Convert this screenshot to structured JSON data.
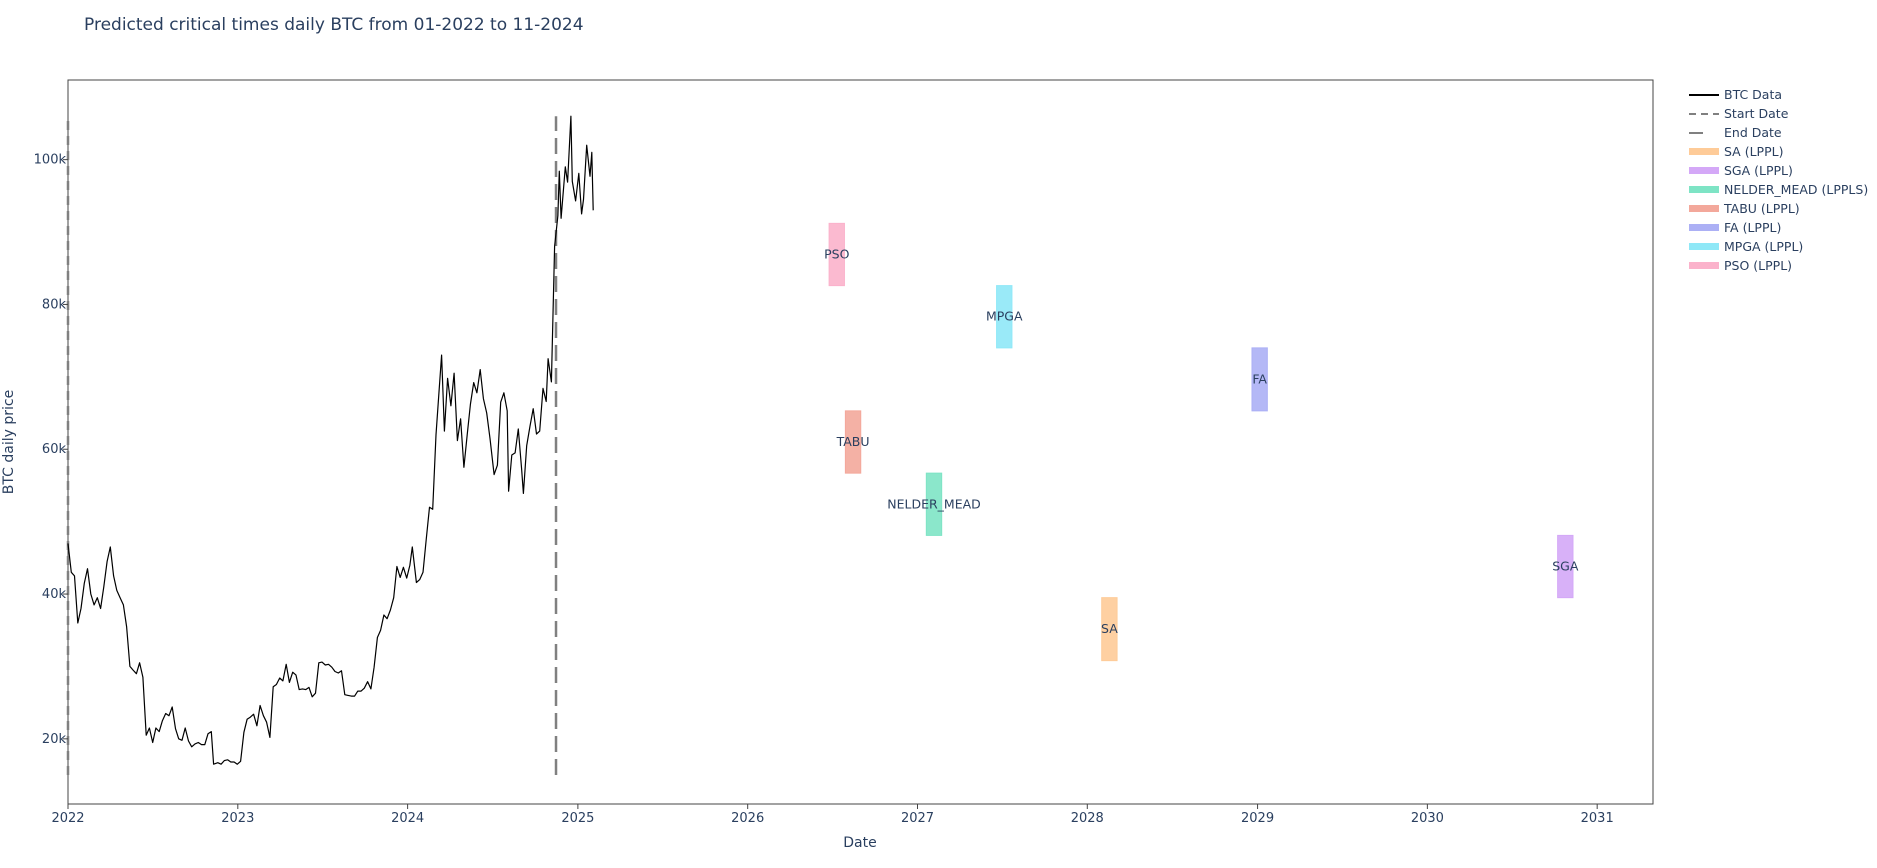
{
  "chart_data": {
    "type": "line",
    "title": "Predicted critical times daily BTC from 01-2022 to 11-2024",
    "xlabel": "Date",
    "ylabel": "BTC daily price",
    "xlim": [
      "2022-01-01",
      "2031-05-01"
    ],
    "ylim": [
      11000,
      111000
    ],
    "x_ticks": [
      "2022",
      "2023",
      "2024",
      "2025",
      "2026",
      "2027",
      "2028",
      "2029",
      "2030",
      "2031"
    ],
    "y_ticks": [
      {
        "value": 20000,
        "label": "20k"
      },
      {
        "value": 40000,
        "label": "40k"
      },
      {
        "value": 60000,
        "label": "60k"
      },
      {
        "value": 80000,
        "label": "80k"
      },
      {
        "value": 100000,
        "label": "100k"
      }
    ],
    "grid": false,
    "legend_position": "right",
    "btc_series": {
      "name": "BTC Data",
      "color": "#000000",
      "points": [
        [
          "2022-01-01",
          47000
        ],
        [
          "2022-01-08",
          43000
        ],
        [
          "2022-01-15",
          42500
        ],
        [
          "2022-01-22",
          36000
        ],
        [
          "2022-01-29",
          38000
        ],
        [
          "2022-02-05",
          41500
        ],
        [
          "2022-02-12",
          43500
        ],
        [
          "2022-02-19",
          40000
        ],
        [
          "2022-02-26",
          38500
        ],
        [
          "2022-03-05",
          39500
        ],
        [
          "2022-03-12",
          38000
        ],
        [
          "2022-03-19",
          41000
        ],
        [
          "2022-03-26",
          44500
        ],
        [
          "2022-04-02",
          46500
        ],
        [
          "2022-04-09",
          42500
        ],
        [
          "2022-04-16",
          40500
        ],
        [
          "2022-04-23",
          39500
        ],
        [
          "2022-04-30",
          38500
        ],
        [
          "2022-05-07",
          35500
        ],
        [
          "2022-05-14",
          30000
        ],
        [
          "2022-05-21",
          29500
        ],
        [
          "2022-05-28",
          29000
        ],
        [
          "2022-06-04",
          30500
        ],
        [
          "2022-06-11",
          28500
        ],
        [
          "2022-06-18",
          20500
        ],
        [
          "2022-06-25",
          21500
        ],
        [
          "2022-07-02",
          19500
        ],
        [
          "2022-07-09",
          21500
        ],
        [
          "2022-07-16",
          21000
        ],
        [
          "2022-07-23",
          22500
        ],
        [
          "2022-07-30",
          23500
        ],
        [
          "2022-08-06",
          23200
        ],
        [
          "2022-08-13",
          24400
        ],
        [
          "2022-08-20",
          21400
        ],
        [
          "2022-08-27",
          20000
        ],
        [
          "2022-09-03",
          19800
        ],
        [
          "2022-09-10",
          21500
        ],
        [
          "2022-09-17",
          19700
        ],
        [
          "2022-09-24",
          18900
        ],
        [
          "2022-10-01",
          19300
        ],
        [
          "2022-10-08",
          19500
        ],
        [
          "2022-10-15",
          19200
        ],
        [
          "2022-10-22",
          19200
        ],
        [
          "2022-10-29",
          20700
        ],
        [
          "2022-11-05",
          21000
        ],
        [
          "2022-11-10",
          16500
        ],
        [
          "2022-11-19",
          16700
        ],
        [
          "2022-11-26",
          16500
        ],
        [
          "2022-12-03",
          17000
        ],
        [
          "2022-12-10",
          17100
        ],
        [
          "2022-12-17",
          16800
        ],
        [
          "2022-12-24",
          16800
        ],
        [
          "2022-12-31",
          16500
        ],
        [
          "2023-01-07",
          16900
        ],
        [
          "2023-01-14",
          20900
        ],
        [
          "2023-01-21",
          22700
        ],
        [
          "2023-01-28",
          23000
        ],
        [
          "2023-02-04",
          23400
        ],
        [
          "2023-02-11",
          21800
        ],
        [
          "2023-02-18",
          24600
        ],
        [
          "2023-02-25",
          23200
        ],
        [
          "2023-03-04",
          22300
        ],
        [
          "2023-03-11",
          20200
        ],
        [
          "2023-03-18",
          27200
        ],
        [
          "2023-03-25",
          27500
        ],
        [
          "2023-04-01",
          28400
        ],
        [
          "2023-04-08",
          28000
        ],
        [
          "2023-04-15",
          30300
        ],
        [
          "2023-04-22",
          27800
        ],
        [
          "2023-04-29",
          29200
        ],
        [
          "2023-05-06",
          28800
        ],
        [
          "2023-05-13",
          26800
        ],
        [
          "2023-05-20",
          26900
        ],
        [
          "2023-05-27",
          26800
        ],
        [
          "2023-06-03",
          27100
        ],
        [
          "2023-06-10",
          25800
        ],
        [
          "2023-06-17",
          26300
        ],
        [
          "2023-06-24",
          30500
        ],
        [
          "2023-07-01",
          30600
        ],
        [
          "2023-07-08",
          30200
        ],
        [
          "2023-07-15",
          30300
        ],
        [
          "2023-07-22",
          29900
        ],
        [
          "2023-07-29",
          29300
        ],
        [
          "2023-08-05",
          29100
        ],
        [
          "2023-08-12",
          29400
        ],
        [
          "2023-08-19",
          26100
        ],
        [
          "2023-08-26",
          26000
        ],
        [
          "2023-09-02",
          25900
        ],
        [
          "2023-09-09",
          25900
        ],
        [
          "2023-09-16",
          26600
        ],
        [
          "2023-09-23",
          26600
        ],
        [
          "2023-09-30",
          27000
        ],
        [
          "2023-10-07",
          27900
        ],
        [
          "2023-10-14",
          26900
        ],
        [
          "2023-10-21",
          29900
        ],
        [
          "2023-10-28",
          34000
        ],
        [
          "2023-11-04",
          35000
        ],
        [
          "2023-11-11",
          37100
        ],
        [
          "2023-11-18",
          36600
        ],
        [
          "2023-11-25",
          37800
        ],
        [
          "2023-12-02",
          39500
        ],
        [
          "2023-12-09",
          43800
        ],
        [
          "2023-12-16",
          42300
        ],
        [
          "2023-12-23",
          43700
        ],
        [
          "2023-12-30",
          42200
        ],
        [
          "2024-01-06",
          44000
        ],
        [
          "2024-01-11",
          46500
        ],
        [
          "2024-01-20",
          41600
        ],
        [
          "2024-01-27",
          42000
        ],
        [
          "2024-02-03",
          43000
        ],
        [
          "2024-02-10",
          47500
        ],
        [
          "2024-02-17",
          52000
        ],
        [
          "2024-02-24",
          51700
        ],
        [
          "2024-03-02",
          62000
        ],
        [
          "2024-03-09",
          68300
        ],
        [
          "2024-03-14",
          73000
        ],
        [
          "2024-03-20",
          62500
        ],
        [
          "2024-03-27",
          69800
        ],
        [
          "2024-04-03",
          66000
        ],
        [
          "2024-04-10",
          70500
        ],
        [
          "2024-04-17",
          61200
        ],
        [
          "2024-04-24",
          64200
        ],
        [
          "2024-05-01",
          57500
        ],
        [
          "2024-05-08",
          62000
        ],
        [
          "2024-05-15",
          66200
        ],
        [
          "2024-05-22",
          69200
        ],
        [
          "2024-05-29",
          67800
        ],
        [
          "2024-06-05",
          71000
        ],
        [
          "2024-06-12",
          67000
        ],
        [
          "2024-06-19",
          65000
        ],
        [
          "2024-06-26",
          61500
        ],
        [
          "2024-07-05",
          56500
        ],
        [
          "2024-07-12",
          57800
        ],
        [
          "2024-07-19",
          66500
        ],
        [
          "2024-07-26",
          67800
        ],
        [
          "2024-08-02",
          65300
        ],
        [
          "2024-08-05",
          54200
        ],
        [
          "2024-08-12",
          59200
        ],
        [
          "2024-08-19",
          59500
        ],
        [
          "2024-08-26",
          62800
        ],
        [
          "2024-09-02",
          57300
        ],
        [
          "2024-09-06",
          53900
        ],
        [
          "2024-09-13",
          60500
        ],
        [
          "2024-09-20",
          63200
        ],
        [
          "2024-09-27",
          65600
        ],
        [
          "2024-10-04",
          62100
        ],
        [
          "2024-10-11",
          62500
        ],
        [
          "2024-10-18",
          68400
        ],
        [
          "2024-10-25",
          66600
        ],
        [
          "2024-10-29",
          72500
        ],
        [
          "2024-11-05",
          69300
        ],
        [
          "2024-11-12",
          88000
        ],
        [
          "2024-11-19",
          92300
        ],
        [
          "2024-11-22",
          98400
        ],
        [
          "2024-11-26",
          91900
        ],
        [
          "2024-12-05",
          99000
        ],
        [
          "2024-12-10",
          96900
        ],
        [
          "2024-12-17",
          106000
        ],
        [
          "2024-12-20",
          97000
        ],
        [
          "2024-12-27",
          94300
        ],
        [
          "2025-01-03",
          98100
        ],
        [
          "2025-01-09",
          92500
        ],
        [
          "2025-01-13",
          94500
        ],
        [
          "2025-01-20",
          102000
        ],
        [
          "2025-01-27",
          97700
        ],
        [
          "2025-01-31",
          101000
        ],
        [
          "2025-02-03",
          93000
        ]
      ]
    },
    "reference_lines": [
      {
        "name": "Start Date",
        "x": "2022-01-01",
        "y_range": [
          15000,
          106000
        ],
        "dash": "dash",
        "color": "#808080"
      },
      {
        "name": "End Date",
        "x": "2024-11-15",
        "y_range": [
          15000,
          106000
        ],
        "dash": "longdash",
        "color": "#808080"
      }
    ],
    "prediction_intervals": [
      {
        "label": "SA",
        "legend": "SA (LPPL)",
        "x0": "2028-02-01",
        "x1": "2028-03-05",
        "y0": 30800,
        "y1": 39500,
        "color": "#FECB98"
      },
      {
        "label": "SGA",
        "legend": "SGA (LPPL)",
        "x0": "2030-10-08",
        "x1": "2030-11-10",
        "y0": 39500,
        "y1": 48100,
        "color": "#D4A8F7"
      },
      {
        "label": "NELDER_MEAD",
        "legend": "NELDER_MEAD (LPPLS)",
        "x0": "2027-01-20",
        "x1": "2027-02-22",
        "y0": 48100,
        "y1": 56700,
        "color": "#7EE4C5"
      },
      {
        "label": "TABU",
        "legend": "TABU (LPPL)",
        "x0": "2026-07-30",
        "x1": "2026-09-01",
        "y0": 56700,
        "y1": 65300,
        "color": "#F3A89B"
      },
      {
        "label": "FA",
        "legend": "FA (LPPL)",
        "x0": "2028-12-20",
        "x1": "2029-01-22",
        "y0": 65300,
        "y1": 74000,
        "color": "#ACB0F5"
      },
      {
        "label": "MPGA",
        "legend": "MPGA (LPPL)",
        "x0": "2027-06-20",
        "x1": "2027-07-23",
        "y0": 74000,
        "y1": 82600,
        "color": "#8FE8F7"
      },
      {
        "label": "PSO",
        "legend": "PSO (LPPL)",
        "x0": "2026-06-25",
        "x1": "2026-07-28",
        "y0": 82600,
        "y1": 91200,
        "color": "#FBB2CB"
      }
    ]
  }
}
